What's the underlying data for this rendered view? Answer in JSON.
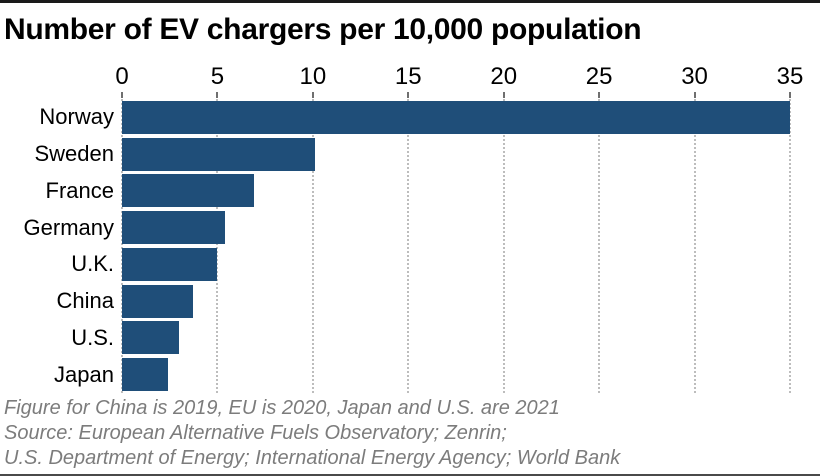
{
  "page": {
    "title": "Number of EV chargers per 10,000 population"
  },
  "chart_data": {
    "type": "bar",
    "orientation": "horizontal",
    "title": "Number of EV chargers per 10,000 population",
    "categories": [
      "Norway",
      "Sweden",
      "France",
      "Germany",
      "U.K.",
      "China",
      "U.S.",
      "Japan"
    ],
    "values": [
      35,
      10.1,
      6.9,
      5.4,
      5.0,
      3.7,
      3.0,
      2.4
    ],
    "xlabel": "",
    "ylabel": "",
    "xlim": [
      0,
      35
    ],
    "x_ticks": [
      0,
      5,
      10,
      15,
      20,
      25,
      30,
      35
    ],
    "grid": "vertical-dotted",
    "legend": "none",
    "axis_position": "top"
  },
  "footer": {
    "note": "Figure for China is 2019, EU is 2020, Japan and U.S. are 2021",
    "source_line1": "Source: European Alternative Fuels Observatory; Zenrin;",
    "source_line2": "U.S. Department of Energy; International Energy Agency; World Bank"
  },
  "colors": {
    "bar": "#1f4e79",
    "grid": "#bdbdbd",
    "tick_mark": "#6f6f6f",
    "text": "#000000",
    "footer_text": "#7c7c7c",
    "border_top": "#1a1a1a",
    "border_bottom": "#4a4a4a",
    "background": "#ffffff"
  }
}
